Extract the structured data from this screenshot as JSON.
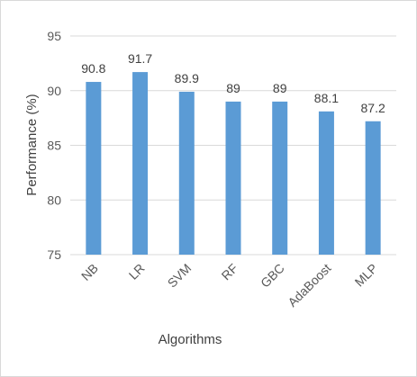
{
  "chart_data": {
    "type": "bar",
    "title": "",
    "xlabel": "Algorithms",
    "ylabel": "Performance (%)",
    "categories": [
      "NB",
      "LR",
      "SVM",
      "RF",
      "GBC",
      "AdaBoost",
      "MLP"
    ],
    "values": [
      90.8,
      91.7,
      89.9,
      89,
      89,
      88.1,
      87.2
    ],
    "data_labels": [
      "90.8",
      "91.7",
      "89.9",
      "89",
      "89",
      "88.1",
      "87.2"
    ],
    "ylim": [
      75,
      95
    ],
    "yticks": [
      "75",
      "80",
      "85",
      "90",
      "95"
    ],
    "grid": true,
    "legend": "none",
    "colors": {
      "bar": "#5b9bd5",
      "grid": "#d9d9d9",
      "text": "#595959"
    }
  }
}
